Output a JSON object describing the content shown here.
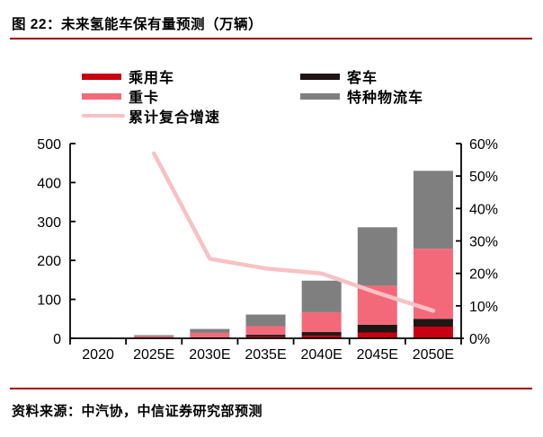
{
  "title": "图 22：未来氢能车保有量预测（万辆）",
  "source": "资料来源：中汽协，中信证券研究部预测",
  "accent_color": "#A40000",
  "legend": {
    "left": [
      {
        "label": "乘用车",
        "color": "#C9000F",
        "swatch": "bar"
      },
      {
        "label": "重卡",
        "color": "#F4697A",
        "swatch": "bar"
      },
      {
        "label": "累计复合增速",
        "color": "#F8C1C3",
        "swatch": "line"
      }
    ],
    "right": [
      {
        "label": "客车",
        "color": "#201515",
        "swatch": "bar"
      },
      {
        "label": "特种物流车",
        "color": "#7F7F7F",
        "swatch": "bar"
      }
    ]
  },
  "chart_data": {
    "type": "bar",
    "subtype": "stacked bars with overlay line on secondary percent axis",
    "categories": [
      "2020",
      "2025E",
      "2030E",
      "2035E",
      "2040E",
      "2045E",
      "2050E"
    ],
    "series": [
      {
        "name": "乘用车",
        "type": "bar",
        "axis": "left",
        "color": "#C9000F",
        "values": [
          0.2,
          0.5,
          1,
          4,
          7,
          15,
          30
        ]
      },
      {
        "name": "客车",
        "type": "bar",
        "axis": "left",
        "color": "#201515",
        "values": [
          0.1,
          0.5,
          1,
          5,
          9,
          20,
          20
        ]
      },
      {
        "name": "重卡",
        "type": "bar",
        "axis": "left",
        "color": "#F4697A",
        "values": [
          0.7,
          4,
          12,
          22,
          51,
          100,
          180
        ]
      },
      {
        "name": "特种物流车",
        "type": "bar",
        "axis": "left",
        "color": "#7F7F7F",
        "values": [
          0.5,
          3,
          10,
          30,
          81,
          150,
          200
        ]
      },
      {
        "name": "累计复合增速",
        "type": "line",
        "axis": "right",
        "color": "#F8C1C3",
        "values": [
          null,
          57,
          24.5,
          21.5,
          20,
          14,
          8.5
        ]
      }
    ],
    "totals_by_category": [
      1.5,
      8,
      24,
      61,
      148,
      285,
      430
    ],
    "left_axis": {
      "min": 0,
      "max": 500,
      "ticks": [
        "0",
        "100",
        "200",
        "300",
        "400",
        "500"
      ]
    },
    "right_axis": {
      "min": 0,
      "max": 60,
      "ticks": [
        "0%",
        "10%",
        "20%",
        "30%",
        "40%",
        "50%",
        "60%"
      ]
    },
    "grid": false,
    "legend_position": "top",
    "axis_color": "#000000",
    "label_color": "#000000"
  }
}
